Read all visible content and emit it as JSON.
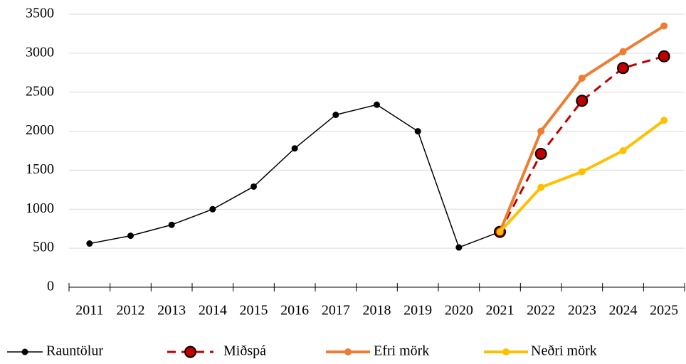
{
  "chart_data": {
    "type": "line",
    "categories": [
      "2011",
      "2012",
      "2013",
      "2014",
      "2015",
      "2016",
      "2017",
      "2018",
      "2019",
      "2020",
      "2021",
      "2022",
      "2023",
      "2024",
      "2025"
    ],
    "series": [
      {
        "name": "Rauntölur",
        "color": "#000000",
        "values": [
          560,
          660,
          800,
          1000,
          1290,
          1780,
          2210,
          2340,
          2000,
          510,
          710,
          null,
          null,
          null,
          null
        ]
      },
      {
        "name": "Miðspá",
        "color": "#c00000",
        "dashed": true,
        "marker_edge": "#000000",
        "values": [
          null,
          null,
          null,
          null,
          null,
          null,
          null,
          null,
          null,
          null,
          710,
          1710,
          2390,
          2810,
          2960
        ]
      },
      {
        "name": "Efri mörk",
        "color": "#ed7d31",
        "values": [
          null,
          null,
          null,
          null,
          null,
          null,
          null,
          null,
          null,
          null,
          710,
          2000,
          2680,
          3020,
          3350
        ]
      },
      {
        "name": "Neðri mörk",
        "color": "#ffc000",
        "values": [
          null,
          null,
          null,
          null,
          null,
          null,
          null,
          null,
          null,
          null,
          710,
          1280,
          1480,
          1750,
          2140
        ]
      }
    ],
    "ylim": [
      0,
      3500
    ],
    "yticks": [
      0,
      500,
      1000,
      1500,
      2000,
      2500,
      3000,
      3500
    ],
    "grid": true,
    "legend": "bottom"
  }
}
